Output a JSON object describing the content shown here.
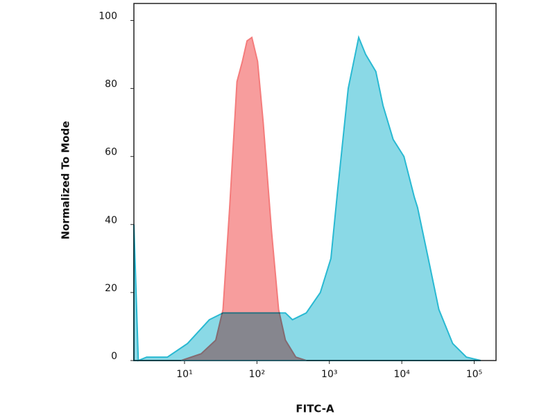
{
  "chart_data": {
    "type": "area",
    "xlabel": "FITC-A",
    "ylabel": "Normalized To Mode",
    "xscale": "log",
    "xlim": [
      2,
      200000
    ],
    "ylim": [
      0,
      105
    ],
    "xticks": [
      {
        "value": 10,
        "label": "10¹"
      },
      {
        "value": 100,
        "label": "10²"
      },
      {
        "value": 1000,
        "label": "10³"
      },
      {
        "value": 10000,
        "label": "10⁴"
      },
      {
        "value": 100000,
        "label": "10⁵"
      }
    ],
    "yticks": [
      0,
      20,
      40,
      60,
      80,
      100
    ],
    "series": [
      {
        "color": "#f47c7c",
        "x": [
          9,
          17,
          27,
          34,
          42,
          53,
          63,
          73,
          85,
          102,
          122,
          159,
          199,
          247,
          344,
          480
        ],
        "values": [
          0,
          2,
          6,
          15,
          45,
          82,
          88,
          94,
          95,
          88,
          70,
          38,
          15,
          6,
          1,
          0
        ]
      },
      {
        "color": "#29b9d2",
        "x": [
          2,
          2.3,
          3,
          5.8,
          11,
          22,
          34,
          66,
          127,
          247,
          309,
          480,
          750,
          1050,
          1300,
          1820,
          2540,
          3170,
          4380,
          5500,
          7600,
          10700,
          14900,
          16500,
          23200,
          32500,
          50400,
          78000,
          123000
        ],
        "values": [
          40,
          0,
          1,
          1,
          5,
          12,
          14,
          14,
          14,
          14,
          12,
          14,
          20,
          30,
          50,
          80,
          95,
          90,
          85,
          75,
          65,
          60,
          48,
          45,
          30,
          15,
          5,
          1,
          0
        ]
      }
    ]
  }
}
